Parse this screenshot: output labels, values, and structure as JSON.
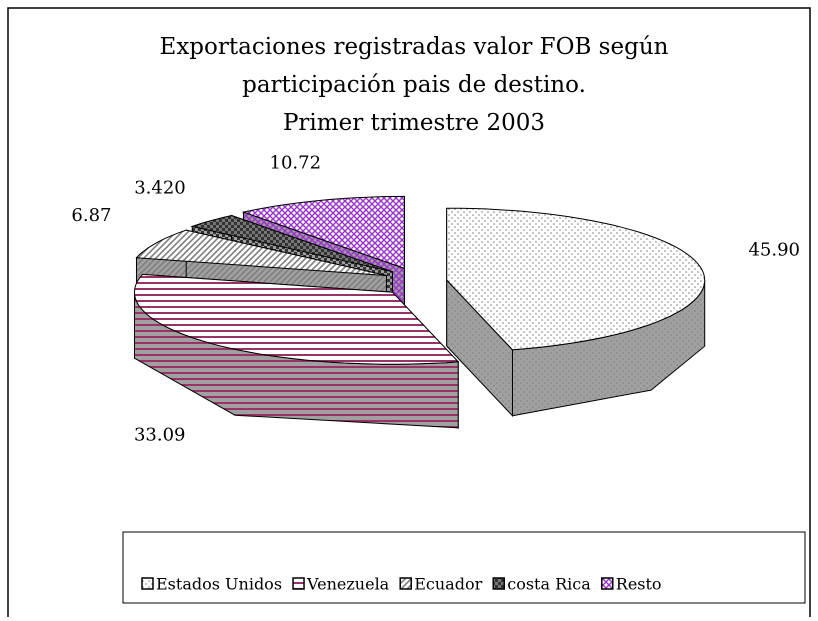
{
  "chart_data": {
    "type": "pie3d",
    "title": [
      "Exportaciones registradas valor FOB según",
      "participación pais de destino.",
      "Primer trimestre 2003"
    ],
    "categories": [
      "Estados Unidos",
      "Venezuela",
      "Ecuador",
      "costa Rica",
      "Resto"
    ],
    "values": [
      45.9,
      33.09,
      6.87,
      3.42,
      10.72
    ],
    "value_labels": [
      "45.90",
      "33.09",
      "6.87",
      "3.420",
      "10.72"
    ],
    "colors": [
      "#808080",
      "#993366",
      "#808080",
      "#333333",
      "#9933cc"
    ],
    "legend": "bottom"
  }
}
